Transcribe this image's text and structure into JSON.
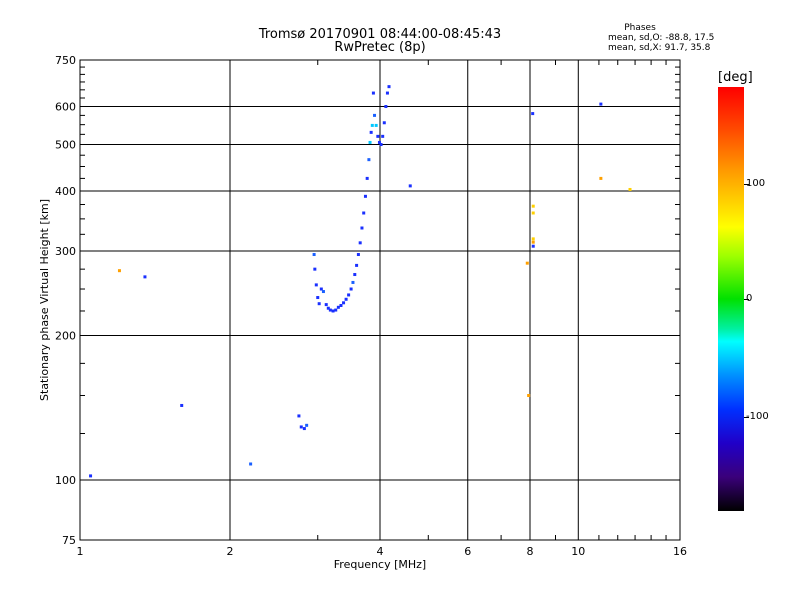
{
  "title_line1": "Tromsø 20170901 08:44:00-08:45:43",
  "title_line2": "RwPretec (8p)",
  "phases": {
    "header": "Phases",
    "o_line": "mean, sd,O: -88.8, 17.5",
    "x_line": "mean, sd,X:  91.7, 35.8"
  },
  "colorbar": {
    "label": "[deg]",
    "ticks": [
      "100",
      "0",
      "-100"
    ]
  },
  "chart_data": {
    "type": "scatter",
    "xlabel": "Frequency [MHz]",
    "ylabel": "Stationary phase Virtual Height [km]",
    "x_scale": "log",
    "y_scale": "log",
    "xlim": [
      1,
      16
    ],
    "ylim": [
      75,
      750
    ],
    "x_ticks": [
      "1",
      "2",
      "4",
      "6",
      "8",
      "10",
      "16"
    ],
    "y_ticks": [
      "75",
      "100",
      "200",
      "300",
      "400",
      "500",
      "600",
      "750"
    ],
    "grid": true,
    "colorbar_range_deg": [
      -180,
      180
    ],
    "points": [
      {
        "x": 1.05,
        "y": 102,
        "c": "#1a30ff"
      },
      {
        "x": 1.2,
        "y": 273,
        "c": "#ffa000"
      },
      {
        "x": 1.35,
        "y": 265,
        "c": "#1a30ff"
      },
      {
        "x": 1.6,
        "y": 143,
        "c": "#1a30ff"
      },
      {
        "x": 2.2,
        "y": 108,
        "c": "#1a60ff"
      },
      {
        "x": 2.75,
        "y": 136,
        "c": "#1a30ff"
      },
      {
        "x": 2.78,
        "y": 129,
        "c": "#1a30ff"
      },
      {
        "x": 2.82,
        "y": 128,
        "c": "#1a30ff"
      },
      {
        "x": 2.85,
        "y": 130,
        "c": "#1a60ff"
      },
      {
        "x": 2.95,
        "y": 295,
        "c": "#1a60ff"
      },
      {
        "x": 2.96,
        "y": 275,
        "c": "#1a30ff"
      },
      {
        "x": 2.98,
        "y": 255,
        "c": "#1a30ff"
      },
      {
        "x": 3.0,
        "y": 240,
        "c": "#1a30ff"
      },
      {
        "x": 3.02,
        "y": 233,
        "c": "#1a30ff"
      },
      {
        "x": 3.05,
        "y": 250,
        "c": "#1a30ff"
      },
      {
        "x": 3.08,
        "y": 247,
        "c": "#1a60ff"
      },
      {
        "x": 3.12,
        "y": 232,
        "c": "#1a30ff"
      },
      {
        "x": 3.15,
        "y": 228,
        "c": "#1a30ff"
      },
      {
        "x": 3.18,
        "y": 226,
        "c": "#1a30ff"
      },
      {
        "x": 3.22,
        "y": 225,
        "c": "#1a30ff"
      },
      {
        "x": 3.26,
        "y": 226,
        "c": "#1a30ff"
      },
      {
        "x": 3.3,
        "y": 229,
        "c": "#1a30ff"
      },
      {
        "x": 3.34,
        "y": 231,
        "c": "#1a30ff"
      },
      {
        "x": 3.38,
        "y": 234,
        "c": "#1a30ff"
      },
      {
        "x": 3.42,
        "y": 238,
        "c": "#1a30ff"
      },
      {
        "x": 3.46,
        "y": 243,
        "c": "#1a30ff"
      },
      {
        "x": 3.5,
        "y": 250,
        "c": "#1a30ff"
      },
      {
        "x": 3.53,
        "y": 258,
        "c": "#1a60ff"
      },
      {
        "x": 3.56,
        "y": 268,
        "c": "#1a30ff"
      },
      {
        "x": 3.59,
        "y": 280,
        "c": "#1a30ff"
      },
      {
        "x": 3.62,
        "y": 295,
        "c": "#1a30ff"
      },
      {
        "x": 3.65,
        "y": 312,
        "c": "#1a30ff"
      },
      {
        "x": 3.68,
        "y": 335,
        "c": "#1a30ff"
      },
      {
        "x": 3.71,
        "y": 360,
        "c": "#1a30ff"
      },
      {
        "x": 3.74,
        "y": 390,
        "c": "#1a30ff"
      },
      {
        "x": 3.77,
        "y": 425,
        "c": "#1a30ff"
      },
      {
        "x": 3.8,
        "y": 465,
        "c": "#1a60ff"
      },
      {
        "x": 3.82,
        "y": 505,
        "c": "#00c8ff"
      },
      {
        "x": 3.84,
        "y": 530,
        "c": "#1a30ff"
      },
      {
        "x": 3.86,
        "y": 548,
        "c": "#00c8ff"
      },
      {
        "x": 3.88,
        "y": 640,
        "c": "#1a30ff"
      },
      {
        "x": 3.9,
        "y": 575,
        "c": "#1a60ff"
      },
      {
        "x": 3.93,
        "y": 548,
        "c": "#00c8ff"
      },
      {
        "x": 3.96,
        "y": 520,
        "c": "#1a30ff"
      },
      {
        "x": 3.99,
        "y": 505,
        "c": "#1a30ff"
      },
      {
        "x": 4.02,
        "y": 500,
        "c": "#1a30ff"
      },
      {
        "x": 4.05,
        "y": 520,
        "c": "#1a30ff"
      },
      {
        "x": 4.08,
        "y": 555,
        "c": "#1a30ff"
      },
      {
        "x": 4.11,
        "y": 600,
        "c": "#1a30ff"
      },
      {
        "x": 4.14,
        "y": 640,
        "c": "#1a30ff"
      },
      {
        "x": 4.17,
        "y": 660,
        "c": "#1a30ff"
      },
      {
        "x": 4.6,
        "y": 410,
        "c": "#1a30ff"
      },
      {
        "x": 7.9,
        "y": 283,
        "c": "#ffa000"
      },
      {
        "x": 7.95,
        "y": 150,
        "c": "#ffa000"
      },
      {
        "x": 8.1,
        "y": 580,
        "c": "#1a30ff"
      },
      {
        "x": 8.12,
        "y": 372,
        "c": "#ffd000"
      },
      {
        "x": 8.12,
        "y": 360,
        "c": "#ffd000"
      },
      {
        "x": 8.12,
        "y": 318,
        "c": "#ffd000"
      },
      {
        "x": 8.12,
        "y": 313,
        "c": "#ffa000"
      },
      {
        "x": 8.12,
        "y": 307,
        "c": "#1a30ff"
      },
      {
        "x": 11.1,
        "y": 607,
        "c": "#1a30ff"
      },
      {
        "x": 11.1,
        "y": 425,
        "c": "#ffa000"
      },
      {
        "x": 12.7,
        "y": 403,
        "c": "#ffd000"
      }
    ]
  }
}
